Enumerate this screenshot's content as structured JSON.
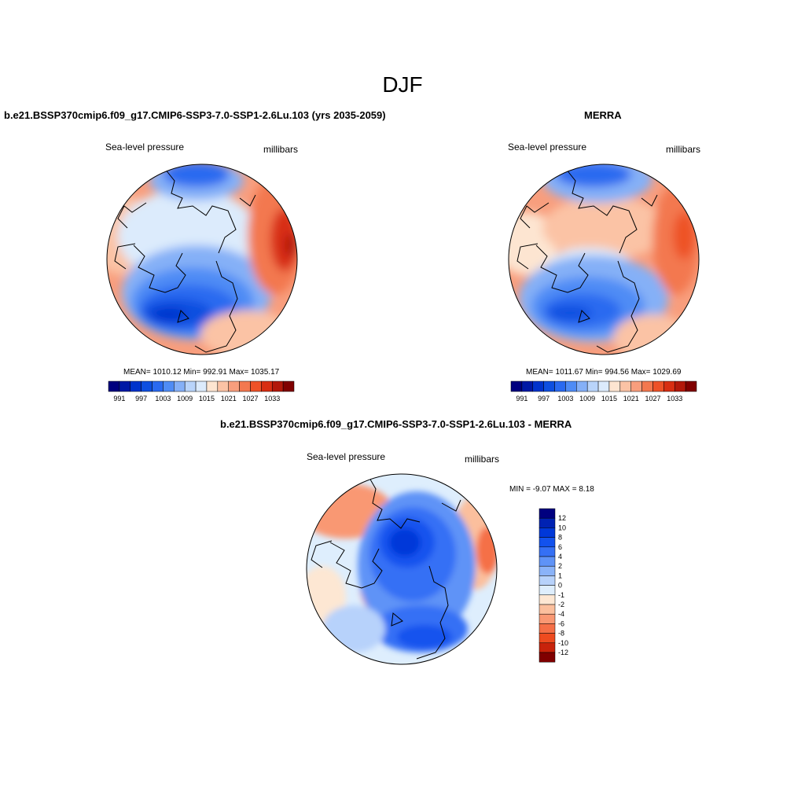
{
  "main_title": "DJF",
  "colors": {
    "abs_scale": [
      "#00007f",
      "#0019a5",
      "#0033cc",
      "#0e4fe0",
      "#2a6af0",
      "#4f8cf5",
      "#85b0f7",
      "#b9d4fa",
      "#dcebfc",
      "#fde5d1",
      "#fbc3a5",
      "#f89e7d",
      "#f3784f",
      "#ee5228",
      "#d82e12",
      "#b2180a",
      "#800000"
    ],
    "diff_scale": [
      "#00007f",
      "#0022b3",
      "#0038d9",
      "#1252ee",
      "#3570f5",
      "#5f93f7",
      "#8ab3f9",
      "#b7d2fb",
      "#deeefd",
      "#fde7d3",
      "#fbbf9d",
      "#f99873",
      "#f56f47",
      "#ee4b1f",
      "#c8230b",
      "#800000"
    ]
  },
  "panels": {
    "model": {
      "title": "b.e21.BSSP370cmip6.f09_g17.CMIP6-SSP3-7.0-SSP1-2.6Lu.103 (yrs 2035-2059)",
      "left_label": "Sea-level pressure",
      "right_label": "millibars",
      "stats": "MEAN= 1010.12  Min= 992.91  Max= 1035.17"
    },
    "obs": {
      "title": "MERRA",
      "left_label": "Sea-level pressure",
      "right_label": "millibars",
      "stats": "MEAN= 1011.67  Min= 994.56  Max= 1029.69"
    },
    "diff": {
      "title": "b.e21.BSSP370cmip6.f09_g17.CMIP6-SSP3-7.0-SSP1-2.6Lu.103 - MERRA",
      "left_label": "Sea-level pressure",
      "right_label": "millibars",
      "stats": "MIN =  -9.07 MAX =   8.18"
    }
  },
  "chart_data": [
    {
      "type": "heatmap",
      "title": "b.e21.BSSP370cmip6.f09_g17.CMIP6-SSP3-7.0-SSP1-2.6Lu.103 (yrs 2035-2059)",
      "variable": "Sea-level pressure",
      "units": "millibars",
      "projection": "north polar stereographic",
      "mean": 1010.12,
      "min": 992.91,
      "max": 1035.17,
      "colorbar_ticks": [
        "991",
        "997",
        "1003",
        "1009",
        "1015",
        "1021",
        "1027",
        "1033"
      ]
    },
    {
      "type": "heatmap",
      "title": "MERRA",
      "variable": "Sea-level pressure",
      "units": "millibars",
      "projection": "north polar stereographic",
      "mean": 1011.67,
      "min": 994.56,
      "max": 1029.69,
      "colorbar_ticks": [
        "991",
        "997",
        "1003",
        "1009",
        "1015",
        "1021",
        "1027",
        "1033"
      ]
    },
    {
      "type": "heatmap",
      "title": "b.e21.BSSP370cmip6.f09_g17.CMIP6-SSP3-7.0-SSP1-2.6Lu.103 - MERRA",
      "variable": "Sea-level pressure",
      "units": "millibars",
      "projection": "north polar stereographic",
      "min": -9.07,
      "max": 8.18,
      "colorbar_ticks": [
        "12",
        "10",
        "8",
        "6",
        "4",
        "2",
        "1",
        "0",
        "-1",
        "-2",
        "-4",
        "-6",
        "-8",
        "-10",
        "-12"
      ]
    }
  ]
}
